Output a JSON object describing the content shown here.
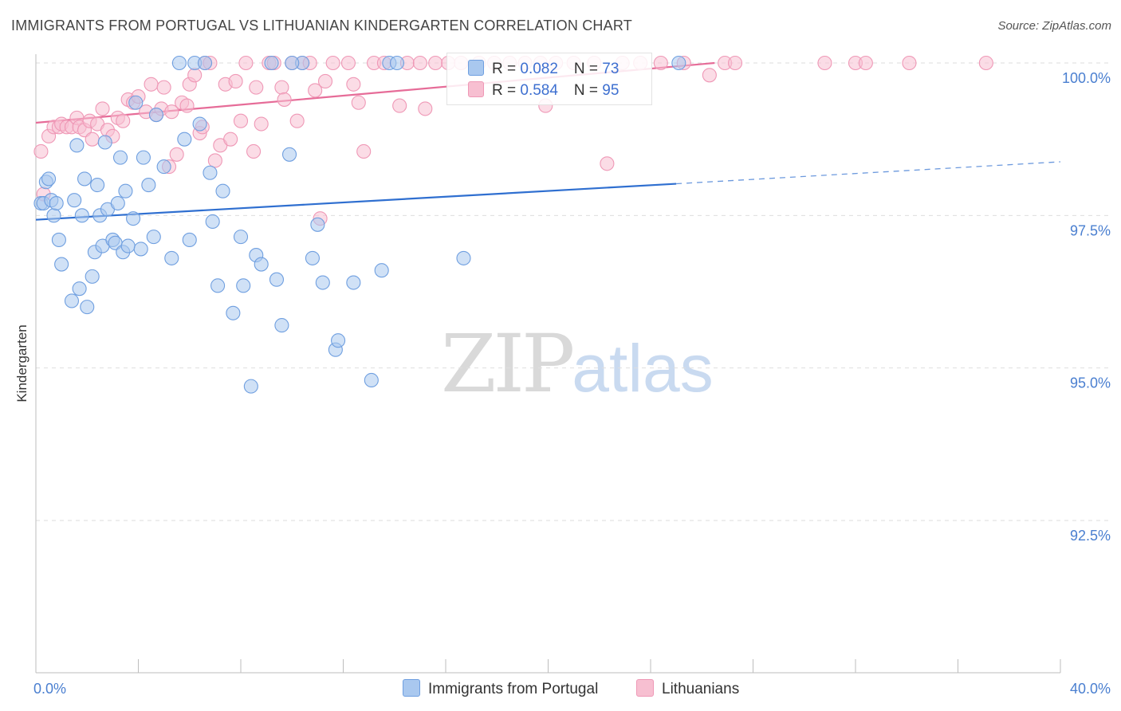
{
  "title": "IMMIGRANTS FROM PORTUGAL VS LITHUANIAN KINDERGARTEN CORRELATION CHART",
  "source": "Source: ZipAtlas.com",
  "watermark": {
    "left": "ZIP",
    "right": "atlas"
  },
  "legend": {
    "rows": [
      {
        "r_label": "R = ",
        "r_value": "0.082",
        "n_label": "N = ",
        "n_value": "73"
      },
      {
        "r_label": "R = ",
        "r_value": "0.584",
        "n_label": "N = ",
        "n_value": "95"
      }
    ]
  },
  "bottom_legend": [
    "Immigrants from Portugal",
    "Lithuanians"
  ],
  "colors": {
    "blue_fill": "#a9c8ef",
    "blue_stroke": "#6f9fe0",
    "blue_line": "#2f6fd0",
    "pink_fill": "#f7bfd1",
    "pink_stroke": "#ef98b6",
    "pink_line": "#e66c98",
    "tick_text": "#4a7fd0",
    "grid": "#dedede"
  },
  "chart_data": {
    "type": "scatter",
    "title": "IMMIGRANTS FROM PORTUGAL VS LITHUANIAN KINDERGARTEN CORRELATION CHART",
    "xlabel": "",
    "ylabel": "Kindergarten",
    "xlim": [
      0.0,
      40.0
    ],
    "ylim": [
      89.8,
      100.3
    ],
    "x_tick_labels": [
      "0.0%",
      "40.0%"
    ],
    "y_ticks": [
      {
        "value": 100.0,
        "label": "100.0%"
      },
      {
        "value": 97.5,
        "label": "97.5%"
      },
      {
        "value": 95.0,
        "label": "95.0%"
      },
      {
        "value": 92.5,
        "label": "92.5%"
      }
    ],
    "grid": "horizontal dashed",
    "legend_position": "top-center",
    "series": [
      {
        "name": "Immigrants from Portugal",
        "R": 0.082,
        "N": 73,
        "trend": {
          "x1": 0.0,
          "y1": 97.43,
          "x2": 25.0,
          "y2": 98.02,
          "dashed_to_x": 40.0,
          "dashed_to_y": 98.38
        },
        "points": [
          [
            0.2,
            97.7
          ],
          [
            0.3,
            97.7
          ],
          [
            0.4,
            98.05
          ],
          [
            0.5,
            98.1
          ],
          [
            0.6,
            97.75
          ],
          [
            0.7,
            97.5
          ],
          [
            0.8,
            97.7
          ],
          [
            0.9,
            97.1
          ],
          [
            1.0,
            96.7
          ],
          [
            1.4,
            96.1
          ],
          [
            1.5,
            97.75
          ],
          [
            1.6,
            98.65
          ],
          [
            1.7,
            96.3
          ],
          [
            1.8,
            97.5
          ],
          [
            1.9,
            98.1
          ],
          [
            2.0,
            96.0
          ],
          [
            2.2,
            96.5
          ],
          [
            2.3,
            96.9
          ],
          [
            2.4,
            98.0
          ],
          [
            2.5,
            97.5
          ],
          [
            2.6,
            97.0
          ],
          [
            2.7,
            98.7
          ],
          [
            2.8,
            97.6
          ],
          [
            3.0,
            97.1
          ],
          [
            3.1,
            97.05
          ],
          [
            3.2,
            97.7
          ],
          [
            3.3,
            98.45
          ],
          [
            3.4,
            96.9
          ],
          [
            3.5,
            97.9
          ],
          [
            3.6,
            97.0
          ],
          [
            3.8,
            97.45
          ],
          [
            3.9,
            99.35
          ],
          [
            4.1,
            96.95
          ],
          [
            4.2,
            98.45
          ],
          [
            4.4,
            98.0
          ],
          [
            4.6,
            97.15
          ],
          [
            4.7,
            99.15
          ],
          [
            5.0,
            98.3
          ],
          [
            5.3,
            96.8
          ],
          [
            5.6,
            100.0
          ],
          [
            5.8,
            98.75
          ],
          [
            6.0,
            97.1
          ],
          [
            6.2,
            100.0
          ],
          [
            6.4,
            99.0
          ],
          [
            6.6,
            100.0
          ],
          [
            6.8,
            98.2
          ],
          [
            6.9,
            97.4
          ],
          [
            7.1,
            96.35
          ],
          [
            7.3,
            97.9
          ],
          [
            7.7,
            95.9
          ],
          [
            8.0,
            97.15
          ],
          [
            8.1,
            96.35
          ],
          [
            8.4,
            94.7
          ],
          [
            8.6,
            96.85
          ],
          [
            8.8,
            96.7
          ],
          [
            9.2,
            100.0
          ],
          [
            9.4,
            96.45
          ],
          [
            9.6,
            95.7
          ],
          [
            9.9,
            98.5
          ],
          [
            10.4,
            100.0
          ],
          [
            10.8,
            96.8
          ],
          [
            11.0,
            97.35
          ],
          [
            11.2,
            96.4
          ],
          [
            11.7,
            95.3
          ],
          [
            11.8,
            95.45
          ],
          [
            12.4,
            96.4
          ],
          [
            13.1,
            94.8
          ],
          [
            13.5,
            96.6
          ],
          [
            13.8,
            100.0
          ],
          [
            14.1,
            100.0
          ],
          [
            16.7,
            96.8
          ],
          [
            25.1,
            100.0
          ],
          [
            10.0,
            100.0
          ]
        ]
      },
      {
        "name": "Lithuanians",
        "R": 0.584,
        "N": 95,
        "trend": {
          "x1": 0.0,
          "y1": 99.02,
          "x2": 26.5,
          "y2": 100.0
        },
        "points": [
          [
            0.2,
            98.55
          ],
          [
            0.3,
            97.85
          ],
          [
            0.5,
            98.8
          ],
          [
            0.7,
            98.95
          ],
          [
            0.9,
            98.95
          ],
          [
            1.0,
            99.0
          ],
          [
            1.2,
            98.95
          ],
          [
            1.4,
            98.95
          ],
          [
            1.6,
            99.1
          ],
          [
            1.7,
            98.95
          ],
          [
            1.9,
            98.9
          ],
          [
            2.1,
            99.05
          ],
          [
            2.2,
            98.75
          ],
          [
            2.4,
            99.0
          ],
          [
            2.6,
            99.25
          ],
          [
            2.8,
            98.9
          ],
          [
            3.0,
            98.8
          ],
          [
            3.2,
            99.1
          ],
          [
            3.4,
            99.05
          ],
          [
            3.6,
            99.4
          ],
          [
            3.8,
            99.35
          ],
          [
            4.0,
            99.45
          ],
          [
            4.3,
            99.2
          ],
          [
            4.5,
            99.65
          ],
          [
            4.7,
            99.15
          ],
          [
            4.9,
            99.25
          ],
          [
            5.0,
            99.6
          ],
          [
            5.2,
            98.3
          ],
          [
            5.3,
            99.2
          ],
          [
            5.5,
            98.5
          ],
          [
            5.7,
            99.35
          ],
          [
            5.9,
            99.3
          ],
          [
            6.0,
            99.65
          ],
          [
            6.2,
            99.8
          ],
          [
            6.4,
            98.85
          ],
          [
            6.5,
            98.95
          ],
          [
            6.6,
            100.0
          ],
          [
            6.8,
            100.0
          ],
          [
            7.0,
            98.4
          ],
          [
            7.2,
            98.65
          ],
          [
            7.4,
            99.65
          ],
          [
            7.6,
            98.75
          ],
          [
            7.8,
            99.7
          ],
          [
            8.0,
            99.05
          ],
          [
            8.2,
            100.0
          ],
          [
            8.5,
            98.55
          ],
          [
            8.6,
            99.6
          ],
          [
            8.8,
            99.0
          ],
          [
            9.1,
            100.0
          ],
          [
            9.3,
            100.0
          ],
          [
            9.6,
            99.6
          ],
          [
            9.7,
            99.4
          ],
          [
            10.0,
            100.0
          ],
          [
            10.2,
            99.05
          ],
          [
            10.4,
            100.0
          ],
          [
            10.7,
            100.0
          ],
          [
            10.9,
            99.55
          ],
          [
            11.1,
            97.45
          ],
          [
            11.3,
            99.7
          ],
          [
            11.6,
            100.0
          ],
          [
            12.2,
            100.0
          ],
          [
            12.4,
            99.65
          ],
          [
            12.6,
            99.35
          ],
          [
            12.8,
            98.55
          ],
          [
            13.2,
            100.0
          ],
          [
            13.6,
            100.0
          ],
          [
            14.2,
            99.3
          ],
          [
            14.5,
            100.0
          ],
          [
            15.0,
            100.0
          ],
          [
            15.2,
            99.25
          ],
          [
            15.6,
            100.0
          ],
          [
            16.1,
            100.0
          ],
          [
            16.6,
            100.0
          ],
          [
            17.3,
            100.0
          ],
          [
            17.9,
            100.0
          ],
          [
            18.5,
            100.0
          ],
          [
            19.1,
            100.0
          ],
          [
            19.7,
            100.0
          ],
          [
            19.9,
            99.3
          ],
          [
            20.3,
            100.0
          ],
          [
            21.0,
            100.0
          ],
          [
            21.8,
            100.0
          ],
          [
            22.3,
            98.35
          ],
          [
            22.9,
            100.0
          ],
          [
            23.6,
            100.0
          ],
          [
            24.4,
            100.0
          ],
          [
            25.3,
            100.0
          ],
          [
            26.3,
            99.8
          ],
          [
            26.9,
            100.0
          ],
          [
            27.3,
            100.0
          ],
          [
            30.8,
            100.0
          ],
          [
            32.0,
            100.0
          ],
          [
            32.4,
            100.0
          ],
          [
            34.1,
            100.0
          ],
          [
            37.1,
            100.0
          ]
        ]
      }
    ]
  }
}
